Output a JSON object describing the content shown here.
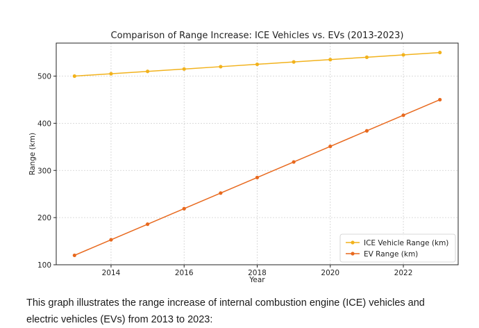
{
  "chart_data": {
    "type": "line",
    "title": "Comparison of Range Increase: ICE Vehicles vs. EVs (2013-2023)",
    "xlabel": "Year",
    "ylabel": "Range (km)",
    "x": [
      2013,
      2014,
      2015,
      2016,
      2017,
      2018,
      2019,
      2020,
      2021,
      2022,
      2023
    ],
    "xlim": [
      2012.5,
      2023.5
    ],
    "ylim": [
      100,
      570
    ],
    "xticks": [
      2014,
      2016,
      2018,
      2020,
      2022
    ],
    "yticks": [
      100,
      200,
      300,
      400,
      500
    ],
    "grid": true,
    "legend_position": "lower-right",
    "series": [
      {
        "name": "ICE Vehicle Range (km)",
        "color": "#f2b21c",
        "values": [
          500,
          505,
          510,
          515,
          520,
          525,
          530,
          535,
          540,
          545,
          550
        ]
      },
      {
        "name": "EV Range (km)",
        "color": "#e8691e",
        "values": [
          120,
          153,
          186,
          219,
          252,
          285,
          318,
          351,
          384,
          417,
          450
        ]
      }
    ]
  },
  "caption": {
    "text": "This graph illustrates the range increase of internal combustion engine (ICE) vehicles and electric vehicles (EVs) from 2013 to 2023:"
  }
}
